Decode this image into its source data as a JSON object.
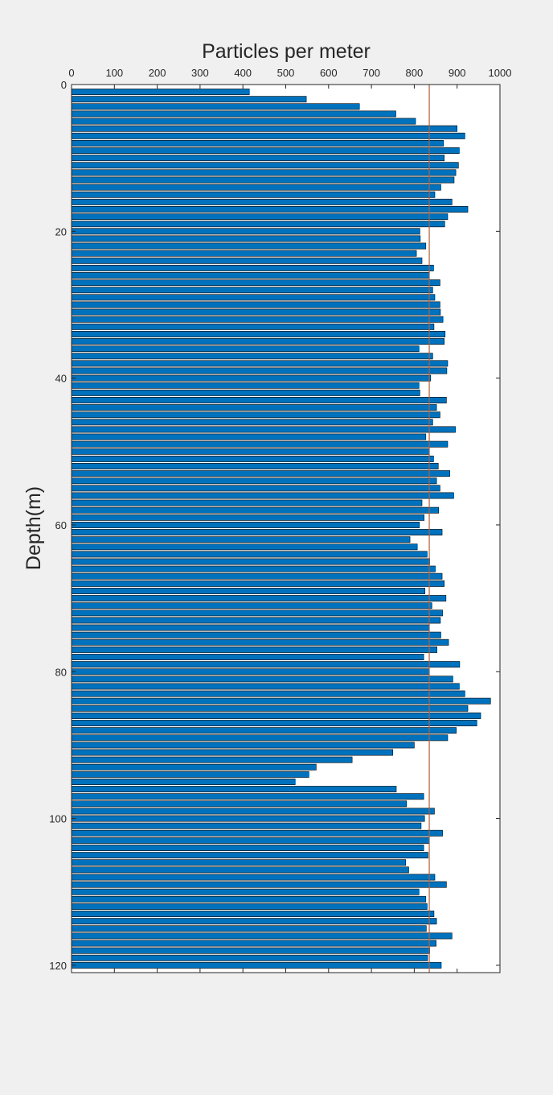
{
  "chart_data": {
    "type": "bar",
    "orientation": "horizontal",
    "title": "",
    "xlabel": "Particles per meter",
    "ylabel": "Depth(m)",
    "xlim": [
      0,
      1000
    ],
    "ylim": [
      0,
      121
    ],
    "y_reversed": true,
    "x_axis_location": "top",
    "xticks": [
      0,
      100,
      200,
      300,
      400,
      500,
      600,
      700,
      800,
      900,
      1000
    ],
    "yticks": [
      0,
      20,
      40,
      60,
      80,
      100,
      120
    ],
    "grid": false,
    "legend": "none",
    "bar_color": "#0072bd",
    "bar_edge_color": "#000000",
    "reference_line": {
      "x": 835,
      "color": "#d95319"
    },
    "depths": [
      1,
      2,
      3,
      4,
      5,
      6,
      7,
      8,
      9,
      10,
      11,
      12,
      13,
      14,
      15,
      16,
      17,
      18,
      19,
      20,
      21,
      22,
      23,
      24,
      25,
      26,
      27,
      28,
      29,
      30,
      31,
      32,
      33,
      34,
      35,
      36,
      37,
      38,
      39,
      40,
      41,
      42,
      43,
      44,
      45,
      46,
      47,
      48,
      49,
      50,
      51,
      52,
      53,
      54,
      55,
      56,
      57,
      58,
      59,
      60,
      61,
      62,
      63,
      64,
      65,
      66,
      67,
      68,
      69,
      70,
      71,
      72,
      73,
      74,
      75,
      76,
      77,
      78,
      79,
      80,
      81,
      82,
      83,
      84,
      85,
      86,
      87,
      88,
      89,
      90,
      91,
      92,
      93,
      94,
      95,
      96,
      97,
      98,
      99,
      100,
      101,
      102,
      103,
      104,
      105,
      106,
      107,
      108,
      109,
      110,
      111,
      112,
      113,
      114,
      115,
      116,
      117,
      118,
      119,
      120
    ],
    "values": [
      415,
      548,
      672,
      757,
      803,
      900,
      918,
      868,
      905,
      870,
      903,
      897,
      893,
      862,
      848,
      888,
      925,
      878,
      871,
      813,
      814,
      827,
      805,
      818,
      845,
      835,
      860,
      843,
      848,
      860,
      861,
      867,
      846,
      872,
      870,
      811,
      843,
      878,
      876,
      838,
      811,
      813,
      875,
      852,
      860,
      843,
      896,
      827,
      878,
      835,
      845,
      856,
      883,
      852,
      860,
      892,
      818,
      857,
      823,
      812,
      865,
      790,
      807,
      830,
      836,
      849,
      865,
      870,
      825,
      874,
      841,
      866,
      861,
      835,
      862,
      880,
      853,
      822,
      906,
      835,
      890,
      905,
      918,
      978,
      925,
      955,
      946,
      898,
      878,
      800,
      750,
      655,
      571,
      554,
      522,
      758,
      822,
      782,
      847,
      824,
      816,
      866,
      835,
      822,
      832,
      780,
      787,
      848,
      875,
      811,
      827,
      830,
      846,
      852,
      828,
      888,
      851,
      836,
      831,
      863
    ]
  }
}
